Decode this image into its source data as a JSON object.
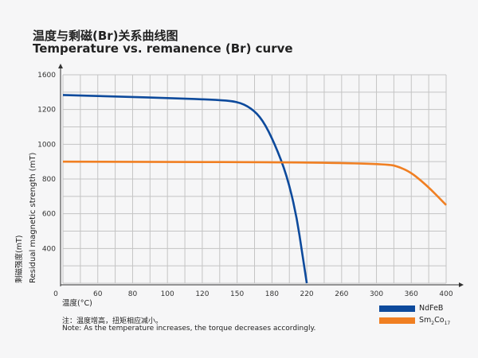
{
  "chart_data": {
    "type": "line",
    "title": "温度与剩磁(Br)关系曲线图",
    "subtitle": "Temperature vs. remanence (Br) curve",
    "xlabel": "温度(°C)",
    "ylabel": "Residual magnetic strength (mT)",
    "ylabel_cn": "剩磁强度(mT)",
    "x_ticks": [
      "0",
      "60",
      "80",
      "100",
      "120",
      "150",
      "180",
      "220",
      "260",
      "300",
      "360",
      "400"
    ],
    "y_ticks": [
      "",
      "400",
      "600",
      "800",
      "1000",
      "1200",
      "1600"
    ],
    "grid": true,
    "legend_position": "bottom-right",
    "series": [
      {
        "name": "NdFeB",
        "sub": "",
        "color": "#0d4a9c",
        "x": [
          0,
          72,
          104,
          131,
          150,
          162,
          172,
          183,
          197,
          208,
          215,
          220
        ],
        "y": [
          1367,
          1349,
          1330,
          1312,
          1293,
          1219,
          1141,
          1005,
          823,
          595,
          364,
          200
        ]
      },
      {
        "name": "Sm",
        "sub1": "2",
        "mid": "Co",
        "sub2": "17",
        "color": "#f07f22",
        "x": [
          0,
          310,
          351,
          377,
          400
        ],
        "y": [
          900,
          895,
          859,
          768,
          650
        ]
      }
    ]
  },
  "notes": {
    "cn": "注：温度增高，扭矩相应减小。",
    "en": "Note: As the temperature increases, the torque decreases accordingly."
  }
}
